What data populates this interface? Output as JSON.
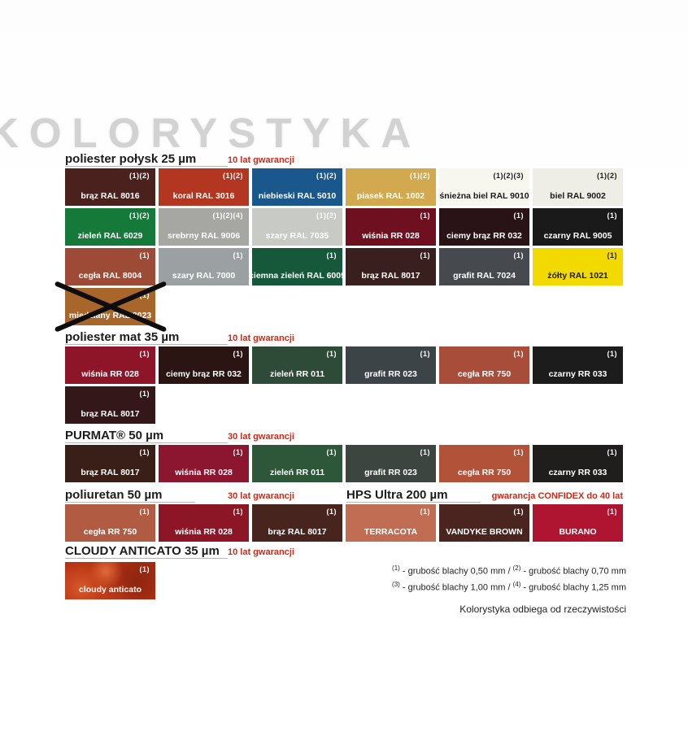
{
  "watermark": "KOLORYSTYKA",
  "accent_red": "#cc2a1a",
  "sections": [
    {
      "title": "poliester połysk 25 µm",
      "warranty": "10 lat gwarancji",
      "swatches": [
        {
          "label": "brąz RAL 8016",
          "sup": "(1)(2)",
          "bg": "#4a211d",
          "text": "#ffffff"
        },
        {
          "label": "koral RAL 3016",
          "sup": "(1)(2)",
          "bg": "#b23620",
          "text": "#ffffff"
        },
        {
          "label": "niebieski RAL 5010",
          "sup": "(1)(2)",
          "bg": "#1a578d",
          "text": "#ffffff"
        },
        {
          "label": "piasek RAL 1002",
          "sup": "(1)(2)",
          "bg": "#d2a94f",
          "text": "#ffffff"
        },
        {
          "label": "śnieżna biel RAL 9010",
          "sup": "(1)(2)(3)",
          "bg": "#f7f6ef",
          "text": "#1a1a1a"
        },
        {
          "label": "biel RAL 9002",
          "sup": "(1)(2)",
          "bg": "#eeeee6",
          "text": "#1a1a1a"
        },
        {
          "label": "zieleń RAL 6029",
          "sup": "(1)(2)",
          "bg": "#15793a",
          "text": "#ffffff"
        },
        {
          "label": "srebrny RAL 9006",
          "sup": "(1)(2)(4)",
          "bg": "#a6a6a2",
          "text": "#ffffff"
        },
        {
          "label": "szary RAL 7035",
          "sup": "(1)(2)",
          "bg": "#c7cac5",
          "text": "#ffffff"
        },
        {
          "label": "wiśnia RR 028",
          "sup": "(1)",
          "bg": "#6f1021",
          "text": "#ffffff"
        },
        {
          "label": "ciemy brąz RR 032",
          "sup": "(1)",
          "bg": "#2a1316",
          "text": "#ffffff"
        },
        {
          "label": "czarny RAL 9005",
          "sup": "(1)",
          "bg": "#1b1a1a",
          "text": "#ffffff"
        },
        {
          "label": "cegła RAL 8004",
          "sup": "(1)",
          "bg": "#9d4a37",
          "text": "#ffffff"
        },
        {
          "label": "szary RAL 7000",
          "sup": "(1)",
          "bg": "#9ba1a3",
          "text": "#ffffff"
        },
        {
          "label": "ciemna zieleń RAL 6005",
          "sup": "(1)",
          "bg": "#16583a",
          "text": "#ffffff"
        },
        {
          "label": "brąz RAL 8017",
          "sup": "(1)",
          "bg": "#39201e",
          "text": "#ffffff"
        },
        {
          "label": "grafit RAL 7024",
          "sup": "(1)",
          "bg": "#46494e",
          "text": "#ffffff"
        },
        {
          "label": "żółty RAL 1021",
          "sup": "(1)",
          "bg": "#f2da00",
          "text": "#1a1a1a"
        },
        {
          "label": "miedziany RAL 8023",
          "sup": "(1)",
          "bg": "#a9662b",
          "text": "#ffffff",
          "crossed": true
        }
      ]
    },
    {
      "title": "poliester mat 35 µm",
      "warranty": "10 lat gwarancji",
      "swatches": [
        {
          "label": "wiśnia RR 028",
          "sup": "(1)",
          "bg": "#8d1527",
          "text": "#ffffff"
        },
        {
          "label": "ciemy brąz RR 032",
          "sup": "(1)",
          "bg": "#2a1512",
          "text": "#ffffff"
        },
        {
          "label": "zieleń RR 011",
          "sup": "(1)",
          "bg": "#2e4b37",
          "text": "#ffffff"
        },
        {
          "label": "grafit RR 023",
          "sup": "(1)",
          "bg": "#3d4447",
          "text": "#ffffff"
        },
        {
          "label": "cegła RR 750",
          "sup": "(1)",
          "bg": "#a84d39",
          "text": "#ffffff"
        },
        {
          "label": "czarny RR 033",
          "sup": "(1)",
          "bg": "#1d1c1c",
          "text": "#ffffff"
        },
        {
          "label": "brąz RAL 8017",
          "sup": "(1)",
          "bg": "#331719",
          "text": "#ffffff"
        }
      ]
    },
    {
      "title": "PURMAT® 50 µm",
      "warranty": "30 lat gwarancji",
      "swatches": [
        {
          "label": "brąz RAL 8017",
          "sup": "(1)",
          "bg": "#3a1f18",
          "text": "#ffffff"
        },
        {
          "label": "wiśnia RR 028",
          "sup": "(1)",
          "bg": "#8c1530",
          "text": "#ffffff"
        },
        {
          "label": "zieleń RR 011",
          "sup": "(1)",
          "bg": "#2e5639",
          "text": "#ffffff"
        },
        {
          "label": "grafit RR 023",
          "sup": "(1)",
          "bg": "#3d4541",
          "text": "#ffffff"
        },
        {
          "label": "cegła RR 750",
          "sup": "(1)",
          "bg": "#b15239",
          "text": "#ffffff"
        },
        {
          "label": "czarny RR 033",
          "sup": "(1)",
          "bg": "#201d1d",
          "text": "#ffffff"
        }
      ]
    },
    {
      "title": "poliuretan 50 µm",
      "warranty": "30 lat gwarancji",
      "swatches": [
        {
          "label": "cegła RR 750",
          "sup": "(1)",
          "bg": "#b15b43",
          "text": "#ffffff"
        },
        {
          "label": "wiśnia RR 028",
          "sup": "(1)",
          "bg": "#8c1526",
          "text": "#ffffff"
        },
        {
          "label": "brąz RAL 8017",
          "sup": "(1)",
          "bg": "#47241e",
          "text": "#ffffff"
        }
      ]
    },
    {
      "title": "HPS Ultra 200 µm",
      "warranty": "gwarancja CONFIDEX do 40 lat",
      "swatches": [
        {
          "label": "TERRACOTA",
          "sup": "(1)",
          "bg": "#c06d53",
          "text": "#ffffff"
        },
        {
          "label": "VANDYKE BROWN",
          "sup": "(1)",
          "bg": "#4a251f",
          "text": "#ffffff"
        },
        {
          "label": "BURANO",
          "sup": "(1)",
          "bg": "#af1531",
          "text": "#ffffff"
        }
      ]
    },
    {
      "title": "CLOUDY ANTICATO 35 µm",
      "warranty": "10 lat gwarancji",
      "swatches": [
        {
          "label": "cloudy anticato",
          "sup": "(1)",
          "bg": "cloudy",
          "text": "#ffffff"
        }
      ]
    }
  ],
  "footnotes": {
    "lines": [
      [
        {
          "sup": "(1)",
          "text": " - grubość blachy 0,50 mm / "
        },
        {
          "sup": "(2)",
          "text": " - grubość blachy 0,70 mm"
        }
      ],
      [
        {
          "sup": "(3)",
          "text": " - grubość blachy 1,00 mm / "
        },
        {
          "sup": "(4)",
          "text": " - grubość blachy 1,25 mm"
        }
      ]
    ],
    "disclaimer": "Kolorystyka odbiega od rzeczywistości"
  }
}
